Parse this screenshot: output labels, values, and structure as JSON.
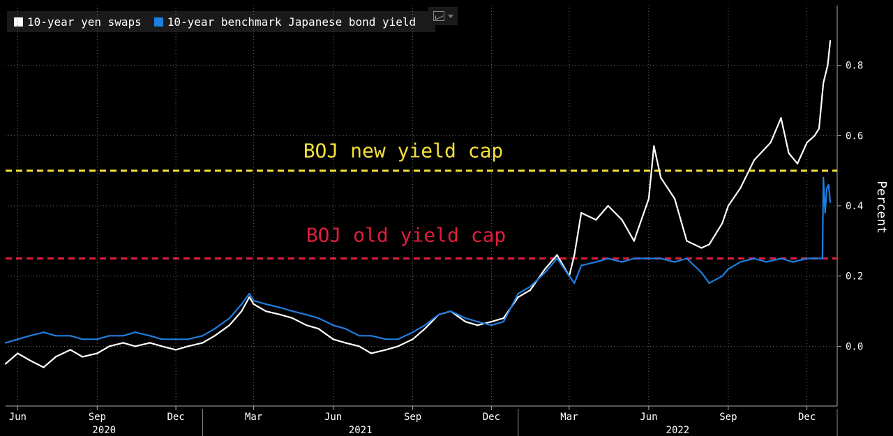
{
  "legend": [
    {
      "label": "10-year yen swaps",
      "color": "#ffffff"
    },
    {
      "label": "10-year benchmark Japanese bond yield",
      "color": "#1e7fe0"
    }
  ],
  "colors": {
    "swaps": "#ffffff",
    "jgb": "#1e7fe0",
    "new_cap": "#f2e03a",
    "old_cap": "#e01e3c",
    "grid": "#6a6a6a"
  },
  "annotations": {
    "new_cap_label": "BOJ new yield cap",
    "old_cap_label": "BOJ old yield cap"
  },
  "icons": {
    "chart_menu": "line-chart-icon"
  },
  "chart_data": {
    "type": "line",
    "ylabel": "Percent",
    "ylim": [
      -0.17,
      0.97
    ],
    "yticks": [
      0.0,
      0.2,
      0.4,
      0.6,
      0.8
    ],
    "ytick_labels": [
      "0.0",
      "0.2",
      "0.4",
      "0.6",
      "0.8"
    ],
    "xlim": [
      "2020-05-18",
      "2023-01-05"
    ],
    "month_ticks": [
      {
        "date": "2020-06-01",
        "label": "Jun"
      },
      {
        "date": "2020-09-01",
        "label": "Sep"
      },
      {
        "date": "2020-12-01",
        "label": "Dec"
      },
      {
        "date": "2021-03-01",
        "label": "Mar"
      },
      {
        "date": "2021-06-01",
        "label": "Jun"
      },
      {
        "date": "2021-09-01",
        "label": "Sep"
      },
      {
        "date": "2021-12-01",
        "label": "Dec"
      },
      {
        "date": "2022-03-01",
        "label": "Mar"
      },
      {
        "date": "2022-06-01",
        "label": "Jun"
      },
      {
        "date": "2022-09-01",
        "label": "Sep"
      },
      {
        "date": "2022-12-01",
        "label": "Dec"
      }
    ],
    "year_labels": [
      {
        "label": "2020",
        "from": "2020-05-18",
        "to": "2021-01-01"
      },
      {
        "label": "2021",
        "from": "2021-01-01",
        "to": "2022-01-01"
      },
      {
        "label": "2022",
        "from": "2022-01-01",
        "to": "2023-01-05"
      }
    ],
    "reference_lines": [
      {
        "name": "BOJ new yield cap",
        "value": 0.5,
        "color": "#f2e03a"
      },
      {
        "name": "BOJ old yield cap",
        "value": 0.25,
        "color": "#e01e3c"
      }
    ],
    "series": [
      {
        "name": "10-year yen swaps",
        "color": "#ffffff",
        "x": [
          "2020-05-18",
          "2020-06-01",
          "2020-06-15",
          "2020-07-01",
          "2020-07-15",
          "2020-08-01",
          "2020-08-15",
          "2020-09-01",
          "2020-09-15",
          "2020-10-01",
          "2020-10-15",
          "2020-11-01",
          "2020-11-15",
          "2020-12-01",
          "2020-12-15",
          "2021-01-01",
          "2021-01-15",
          "2021-02-01",
          "2021-02-15",
          "2021-02-24",
          "2021-03-01",
          "2021-03-15",
          "2021-04-01",
          "2021-04-15",
          "2021-05-01",
          "2021-05-15",
          "2021-06-01",
          "2021-06-15",
          "2021-07-01",
          "2021-07-15",
          "2021-08-01",
          "2021-08-15",
          "2021-09-01",
          "2021-09-15",
          "2021-10-01",
          "2021-10-15",
          "2021-11-01",
          "2021-11-15",
          "2021-12-01",
          "2021-12-15",
          "2022-01-01",
          "2022-01-15",
          "2022-02-01",
          "2022-02-15",
          "2022-03-01",
          "2022-03-07",
          "2022-03-15",
          "2022-04-01",
          "2022-04-15",
          "2022-05-01",
          "2022-05-15",
          "2022-06-01",
          "2022-06-07",
          "2022-06-15",
          "2022-07-01",
          "2022-07-15",
          "2022-08-01",
          "2022-08-10",
          "2022-08-25",
          "2022-09-01",
          "2022-09-15",
          "2022-10-01",
          "2022-10-20",
          "2022-11-01",
          "2022-11-10",
          "2022-11-20",
          "2022-12-01",
          "2022-12-10",
          "2022-12-15",
          "2022-12-20",
          "2022-12-25",
          "2022-12-28"
        ],
        "values": [
          -0.05,
          -0.02,
          -0.04,
          -0.06,
          -0.03,
          -0.01,
          -0.03,
          -0.02,
          0.0,
          0.01,
          0.0,
          0.01,
          0.0,
          -0.01,
          0.0,
          0.01,
          0.03,
          0.06,
          0.1,
          0.14,
          0.12,
          0.1,
          0.09,
          0.08,
          0.06,
          0.05,
          0.02,
          0.01,
          0.0,
          -0.02,
          -0.01,
          0.0,
          0.02,
          0.05,
          0.09,
          0.1,
          0.07,
          0.06,
          0.07,
          0.08,
          0.14,
          0.16,
          0.22,
          0.26,
          0.2,
          0.26,
          0.38,
          0.36,
          0.4,
          0.36,
          0.3,
          0.42,
          0.57,
          0.48,
          0.42,
          0.3,
          0.28,
          0.29,
          0.35,
          0.4,
          0.45,
          0.53,
          0.58,
          0.65,
          0.55,
          0.52,
          0.58,
          0.6,
          0.62,
          0.75,
          0.8,
          0.87
        ]
      },
      {
        "name": "10-year benchmark Japanese bond yield",
        "color": "#1e7fe0",
        "x": [
          "2020-05-18",
          "2020-06-01",
          "2020-06-15",
          "2020-07-01",
          "2020-07-15",
          "2020-08-01",
          "2020-08-15",
          "2020-09-01",
          "2020-09-15",
          "2020-10-01",
          "2020-10-15",
          "2020-11-01",
          "2020-11-15",
          "2020-12-01",
          "2020-12-15",
          "2021-01-01",
          "2021-01-15",
          "2021-02-01",
          "2021-02-15",
          "2021-02-24",
          "2021-03-01",
          "2021-03-15",
          "2021-04-01",
          "2021-04-15",
          "2021-05-01",
          "2021-05-15",
          "2021-06-01",
          "2021-06-15",
          "2021-07-01",
          "2021-07-15",
          "2021-08-01",
          "2021-08-15",
          "2021-09-01",
          "2021-09-15",
          "2021-10-01",
          "2021-10-15",
          "2021-11-01",
          "2021-11-15",
          "2021-12-01",
          "2021-12-15",
          "2022-01-01",
          "2022-01-15",
          "2022-02-01",
          "2022-02-15",
          "2022-03-01",
          "2022-03-07",
          "2022-03-15",
          "2022-04-01",
          "2022-04-15",
          "2022-05-01",
          "2022-05-15",
          "2022-06-01",
          "2022-06-15",
          "2022-07-01",
          "2022-07-15",
          "2022-08-01",
          "2022-08-10",
          "2022-08-25",
          "2022-09-01",
          "2022-09-15",
          "2022-10-01",
          "2022-10-15",
          "2022-11-01",
          "2022-11-15",
          "2022-12-01",
          "2022-12-15",
          "2022-12-19",
          "2022-12-20",
          "2022-12-22",
          "2022-12-24",
          "2022-12-26",
          "2022-12-28"
        ],
        "values": [
          0.01,
          0.02,
          0.03,
          0.04,
          0.03,
          0.03,
          0.02,
          0.02,
          0.03,
          0.03,
          0.04,
          0.03,
          0.02,
          0.02,
          0.02,
          0.03,
          0.05,
          0.08,
          0.12,
          0.15,
          0.13,
          0.12,
          0.11,
          0.1,
          0.09,
          0.08,
          0.06,
          0.05,
          0.03,
          0.03,
          0.02,
          0.02,
          0.04,
          0.06,
          0.09,
          0.1,
          0.08,
          0.07,
          0.06,
          0.07,
          0.15,
          0.17,
          0.21,
          0.25,
          0.2,
          0.18,
          0.23,
          0.24,
          0.25,
          0.24,
          0.25,
          0.25,
          0.25,
          0.24,
          0.25,
          0.21,
          0.18,
          0.2,
          0.22,
          0.24,
          0.25,
          0.24,
          0.25,
          0.24,
          0.25,
          0.25,
          0.25,
          0.48,
          0.38,
          0.45,
          0.46,
          0.41
        ]
      }
    ]
  }
}
